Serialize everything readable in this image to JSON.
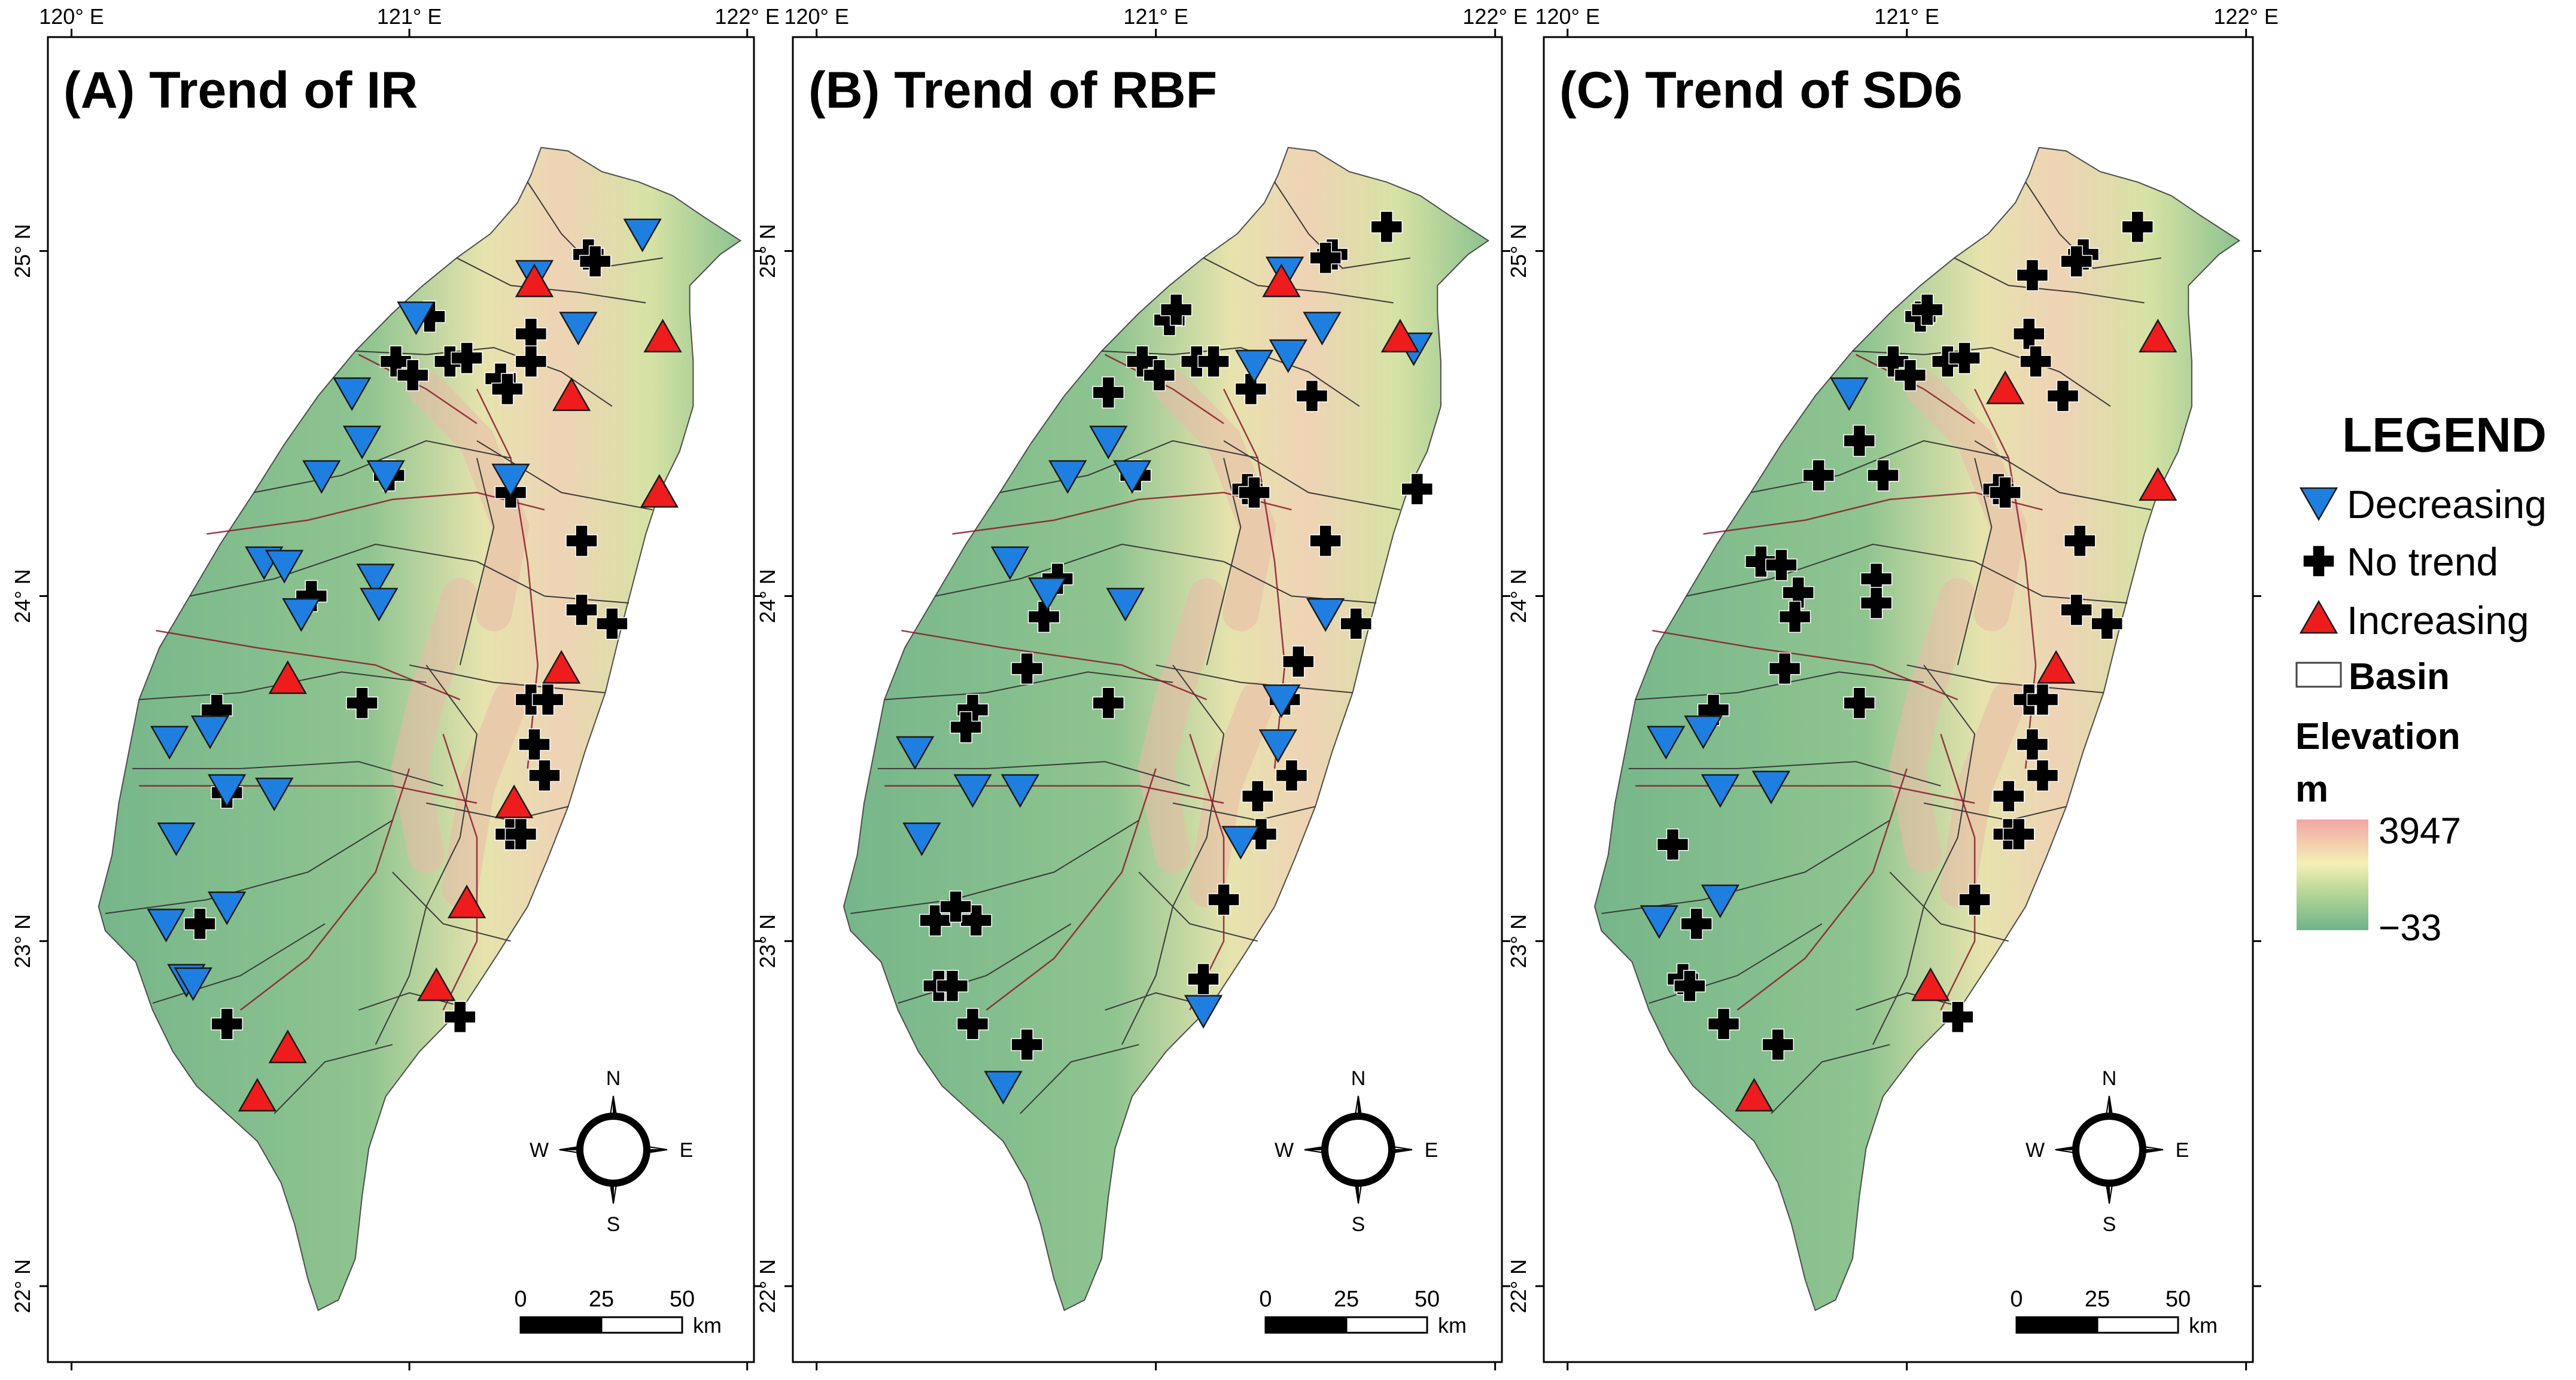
{
  "panels": [
    {
      "title": "(A) Trend of IR",
      "stations": {
        "decreasing": [
          [
            121.69,
            25.05
          ],
          [
            121.37,
            24.93
          ],
          [
            121.5,
            24.78
          ],
          [
            121.02,
            24.81
          ],
          [
            120.83,
            24.59
          ],
          [
            120.86,
            24.45
          ],
          [
            120.74,
            24.35
          ],
          [
            120.93,
            24.35
          ],
          [
            121.3,
            24.34
          ],
          [
            120.57,
            24.1
          ],
          [
            120.63,
            24.09
          ],
          [
            120.9,
            24.05
          ],
          [
            120.91,
            23.98
          ],
          [
            120.68,
            23.95
          ],
          [
            120.29,
            23.58
          ],
          [
            120.41,
            23.61
          ],
          [
            120.46,
            23.44
          ],
          [
            120.6,
            23.43
          ],
          [
            120.31,
            23.3
          ],
          [
            120.28,
            23.05
          ],
          [
            120.46,
            23.1
          ],
          [
            120.34,
            22.89
          ],
          [
            120.36,
            22.88
          ]
        ],
        "no_trend": [
          [
            121.53,
            24.99
          ],
          [
            121.55,
            24.97
          ],
          [
            121.06,
            24.81
          ],
          [
            121.36,
            24.76
          ],
          [
            120.96,
            24.68
          ],
          [
            121.01,
            24.64
          ],
          [
            121.12,
            24.68
          ],
          [
            121.17,
            24.69
          ],
          [
            121.36,
            24.68
          ],
          [
            121.27,
            24.63
          ],
          [
            121.29,
            24.6
          ],
          [
            120.94,
            24.35
          ],
          [
            121.3,
            24.3
          ],
          [
            121.51,
            24.16
          ],
          [
            120.71,
            24.0
          ],
          [
            121.51,
            23.96
          ],
          [
            121.6,
            23.92
          ],
          [
            120.86,
            23.69
          ],
          [
            121.36,
            23.7
          ],
          [
            121.41,
            23.7
          ],
          [
            121.37,
            23.57
          ],
          [
            121.4,
            23.48
          ],
          [
            121.3,
            23.31
          ],
          [
            121.33,
            23.31
          ],
          [
            120.43,
            23.67
          ],
          [
            120.46,
            23.43
          ],
          [
            120.38,
            23.05
          ],
          [
            120.46,
            22.76
          ],
          [
            121.15,
            22.78
          ]
        ],
        "increasing": [
          [
            121.37,
            24.91
          ],
          [
            121.75,
            24.75
          ],
          [
            121.48,
            24.58
          ],
          [
            121.74,
            24.3
          ],
          [
            121.45,
            23.79
          ],
          [
            120.64,
            23.76
          ],
          [
            121.31,
            23.4
          ],
          [
            121.17,
            23.11
          ],
          [
            121.08,
            22.87
          ],
          [
            120.64,
            22.69
          ],
          [
            120.55,
            22.55
          ]
        ]
      }
    },
    {
      "title": "(B) Trend of RBF",
      "stations": {
        "decreasing": [
          [
            121.38,
            24.94
          ],
          [
            121.49,
            24.78
          ],
          [
            121.39,
            24.7
          ],
          [
            121.29,
            24.67
          ],
          [
            121.76,
            24.72
          ],
          [
            120.86,
            24.45
          ],
          [
            120.74,
            24.35
          ],
          [
            120.93,
            24.35
          ],
          [
            120.57,
            24.1
          ],
          [
            120.68,
            24.01
          ],
          [
            120.91,
            23.98
          ],
          [
            121.5,
            23.95
          ],
          [
            121.37,
            23.7
          ],
          [
            121.36,
            23.57
          ],
          [
            120.29,
            23.55
          ],
          [
            120.46,
            23.44
          ],
          [
            120.6,
            23.44
          ],
          [
            120.31,
            23.3
          ],
          [
            121.25,
            23.29
          ],
          [
            121.14,
            22.8
          ],
          [
            120.55,
            22.58
          ]
        ],
        "no_trend": [
          [
            121.68,
            25.07
          ],
          [
            121.52,
            24.99
          ],
          [
            121.5,
            24.98
          ],
          [
            121.04,
            24.8
          ],
          [
            121.06,
            24.83
          ],
          [
            120.96,
            24.68
          ],
          [
            121.01,
            24.64
          ],
          [
            121.12,
            24.68
          ],
          [
            121.17,
            24.68
          ],
          [
            121.28,
            24.6
          ],
          [
            121.46,
            24.58
          ],
          [
            120.86,
            24.59
          ],
          [
            120.94,
            24.35
          ],
          [
            121.27,
            24.31
          ],
          [
            121.29,
            24.3
          ],
          [
            121.77,
            24.31
          ],
          [
            121.5,
            24.16
          ],
          [
            120.71,
            24.05
          ],
          [
            121.59,
            23.92
          ],
          [
            120.67,
            23.94
          ],
          [
            120.62,
            23.79
          ],
          [
            121.42,
            23.81
          ],
          [
            120.46,
            23.67
          ],
          [
            120.44,
            23.62
          ],
          [
            120.86,
            23.69
          ],
          [
            121.38,
            23.7
          ],
          [
            121.4,
            23.48
          ],
          [
            121.3,
            23.42
          ],
          [
            121.31,
            23.31
          ],
          [
            120.35,
            23.06
          ],
          [
            120.47,
            23.06
          ],
          [
            120.41,
            23.1
          ],
          [
            120.36,
            22.87
          ],
          [
            120.4,
            22.87
          ],
          [
            121.14,
            22.89
          ],
          [
            120.46,
            22.76
          ],
          [
            120.62,
            22.7
          ],
          [
            121.2,
            23.12
          ]
        ],
        "increasing": [
          [
            121.37,
            24.91
          ],
          [
            121.72,
            24.75
          ]
        ]
      }
    },
    {
      "title": "(C) Trend of SD6",
      "stations": {
        "decreasing": [
          [
            120.83,
            24.59
          ],
          [
            120.29,
            23.58
          ],
          [
            120.4,
            23.61
          ],
          [
            120.45,
            23.44
          ],
          [
            120.6,
            23.45
          ],
          [
            120.45,
            23.12
          ],
          [
            120.27,
            23.06
          ]
        ],
        "no_trend": [
          [
            121.68,
            25.07
          ],
          [
            121.52,
            24.99
          ],
          [
            121.5,
            24.97
          ],
          [
            121.37,
            24.93
          ],
          [
            121.04,
            24.81
          ],
          [
            121.06,
            24.83
          ],
          [
            121.36,
            24.76
          ],
          [
            121.38,
            24.68
          ],
          [
            120.96,
            24.68
          ],
          [
            121.01,
            24.64
          ],
          [
            121.12,
            24.68
          ],
          [
            121.17,
            24.69
          ],
          [
            121.46,
            24.58
          ],
          [
            120.86,
            24.45
          ],
          [
            120.74,
            24.35
          ],
          [
            120.93,
            24.35
          ],
          [
            121.27,
            24.31
          ],
          [
            121.29,
            24.3
          ],
          [
            120.57,
            24.1
          ],
          [
            120.63,
            24.09
          ],
          [
            120.68,
            24.01
          ],
          [
            120.91,
            24.05
          ],
          [
            120.91,
            23.98
          ],
          [
            120.67,
            23.94
          ],
          [
            121.51,
            24.16
          ],
          [
            121.5,
            23.96
          ],
          [
            121.59,
            23.92
          ],
          [
            120.64,
            23.79
          ],
          [
            120.43,
            23.67
          ],
          [
            120.86,
            23.69
          ],
          [
            121.36,
            23.7
          ],
          [
            121.4,
            23.7
          ],
          [
            121.37,
            23.57
          ],
          [
            121.4,
            23.48
          ],
          [
            121.3,
            23.42
          ],
          [
            121.3,
            23.31
          ],
          [
            121.33,
            23.31
          ],
          [
            120.31,
            23.28
          ],
          [
            120.38,
            23.05
          ],
          [
            120.34,
            22.89
          ],
          [
            120.36,
            22.87
          ],
          [
            120.46,
            22.76
          ],
          [
            120.62,
            22.7
          ],
          [
            121.2,
            23.12
          ],
          [
            121.15,
            22.78
          ]
        ],
        "increasing": [
          [
            121.29,
            24.6
          ],
          [
            121.74,
            24.75
          ],
          [
            121.74,
            24.32
          ],
          [
            121.44,
            23.79
          ],
          [
            121.07,
            22.87
          ],
          [
            120.55,
            22.55
          ]
        ]
      }
    }
  ],
  "axes": {
    "lon_ticks": [
      "120° E",
      "121° E",
      "122° E"
    ],
    "lat_ticks": [
      "25° N",
      "24° N",
      "23° N",
      "22° N"
    ]
  },
  "compass": {
    "n": "N",
    "s": "S",
    "e": "E",
    "w": "W"
  },
  "scale_bar": {
    "labels": [
      "0",
      "25",
      "50"
    ],
    "unit": "km"
  },
  "legend": {
    "heading": "LEGEND",
    "decreasing": "Decreasing",
    "no_trend": "No trend",
    "increasing": "Increasing",
    "basin": "Basin",
    "elevation_title": "Elevation",
    "elevation_unit": "m",
    "elevation_max": "3947",
    "elevation_min": "−33"
  },
  "colors": {
    "decreasing": "#1e7fe0",
    "increasing": "#ee1c1c",
    "no_trend": "#000000",
    "elev_low": "#6fb38a",
    "elev_mid": "#f4f0b4",
    "elev_high": "#f2a5a5"
  }
}
